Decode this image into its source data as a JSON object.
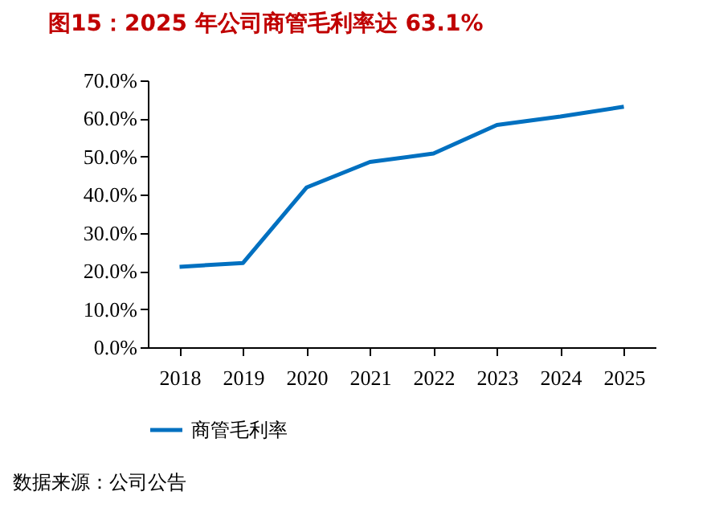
{
  "chart_data": {
    "type": "line",
    "title": "图15：2025 年公司商管毛利率达 63.1%",
    "categories": [
      "2018",
      "2019",
      "2020",
      "2021",
      "2022",
      "2023",
      "2024",
      "2025"
    ],
    "series": [
      {
        "name": "商管毛利率",
        "color": "#0070c0",
        "values": [
          21.1,
          22.1,
          41.9,
          48.6,
          50.8,
          58.3,
          60.5,
          63.1
        ]
      }
    ],
    "ylim": [
      0,
      70
    ],
    "yticks": [
      {
        "value": 0,
        "label": "0.0%"
      },
      {
        "value": 10,
        "label": "10.0%"
      },
      {
        "value": 20,
        "label": "20.0%"
      },
      {
        "value": 30,
        "label": "30.0%"
      },
      {
        "value": 40,
        "label": "40.0%"
      },
      {
        "value": 50,
        "label": "50.0%"
      },
      {
        "value": 60,
        "label": "60.0%"
      },
      {
        "value": 70,
        "label": "70.0%"
      }
    ],
    "grid": false,
    "legend": "bottom",
    "marker": "none",
    "line_style": "solid",
    "annotations": [
      "数据来源：公司公告"
    ]
  }
}
